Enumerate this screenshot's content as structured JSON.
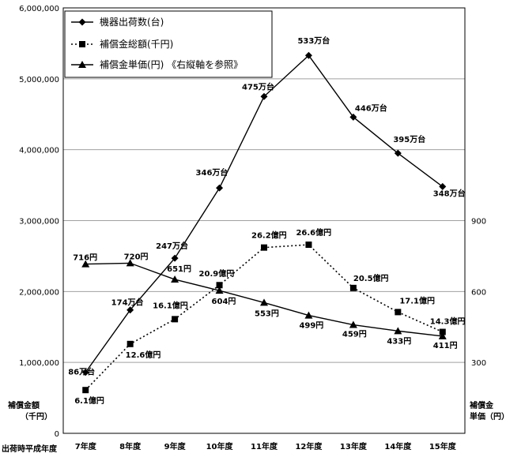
{
  "chart_data": {
    "type": "line",
    "categories": [
      "7年度",
      "8年度",
      "9年度",
      "10年度",
      "11年度",
      "12年度",
      "13年度",
      "14年度",
      "15年度"
    ],
    "x_axis_title": "出荷時平成年度",
    "left_axis": {
      "title_line1": "補償金額",
      "title_line2": "（千円）",
      "ylim": [
        0,
        6000000
      ],
      "ticks": [
        0,
        1000000,
        2000000,
        3000000,
        4000000,
        5000000,
        6000000
      ],
      "tick_labels": [
        "0",
        "1,000,000",
        "2,000,000",
        "3,000,000",
        "4,000,000",
        "5,000,000",
        "6,000,000"
      ]
    },
    "right_axis": {
      "title_line1": "補償金",
      "title_line2": "単価（円）",
      "ylim": [
        0,
        1800
      ],
      "ticks": [
        300,
        600,
        900
      ],
      "tick_labels": [
        "300",
        "600",
        "900"
      ]
    },
    "grid": true,
    "legend_position": "top-left",
    "series": [
      {
        "name": "機器出荷数(台)",
        "axis": "left",
        "style": "solid",
        "marker": "diamond",
        "values": [
          860000,
          1740000,
          2470000,
          3460000,
          4750000,
          5330000,
          4460000,
          3950000,
          3480000
        ],
        "labels": [
          "86万台",
          "174万台",
          "247万台",
          "346万台",
          "475万台",
          "533万台",
          "446万台",
          "395万台",
          "348万台"
        ]
      },
      {
        "name": "補償金総額(千円)",
        "axis": "left",
        "style": "dotted",
        "marker": "square",
        "values": [
          610000,
          1260000,
          1610000,
          2090000,
          2620000,
          2660000,
          2050000,
          1710000,
          1430000
        ],
        "labels": [
          "6.1億円",
          "12.6億円",
          "16.1億円",
          "20.9億円",
          "26.2億円",
          "26.6億円",
          "20.5億円",
          "17.1億円",
          "14.3億円"
        ]
      },
      {
        "name": "補償金単価(円) 《右縦軸を参照》",
        "axis": "right",
        "style": "solid",
        "marker": "triangle",
        "values": [
          716,
          720,
          651,
          604,
          553,
          499,
          459,
          433,
          411
        ],
        "labels": [
          "716円",
          "720円",
          "651円",
          "604円",
          "553円",
          "499円",
          "459円",
          "433円",
          "411円"
        ]
      }
    ]
  }
}
